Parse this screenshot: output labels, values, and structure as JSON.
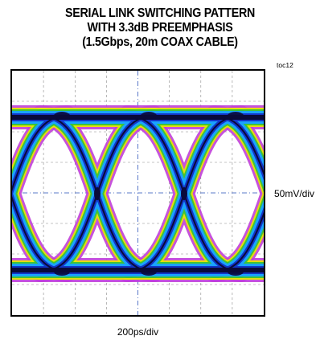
{
  "chart_data": {
    "type": "eye-diagram",
    "title_lines": [
      "SERIAL LINK SWITCHING PATTERN",
      "WITH 3.3dB PREEMPHASIS",
      "(1.5Gbps, 20m COAX CABLE)"
    ],
    "figure_tag": "toc12",
    "vertical_scale_label": "50mV/div",
    "horizontal_scale_label": "200ps/div",
    "grid": {
      "h_divisions": 8,
      "v_divisions": 8,
      "style": "dashed"
    },
    "colors": {
      "core": "#0a0a3a",
      "inner": "#1236c8",
      "mid": "#1aa3ff",
      "band_green": "#38c238",
      "band_yellow": "#e9e600",
      "outer": "#c03fd8",
      "grid": "#8a8a8a",
      "center_axis": "#5a78c8"
    }
  }
}
